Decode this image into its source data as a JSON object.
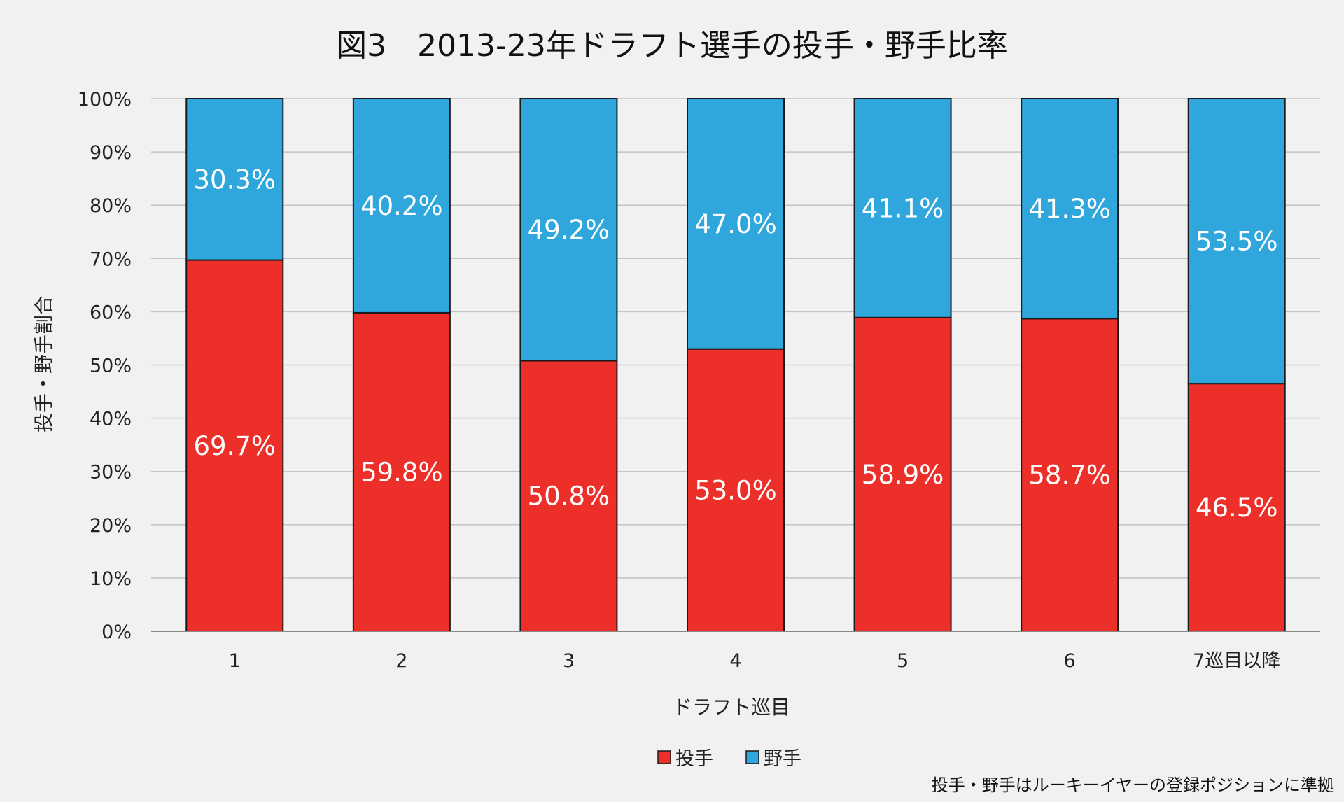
{
  "chart_data": {
    "type": "bar",
    "stacked": true,
    "title": "図3　2013-23年ドラフト選手の投手・野手比率",
    "xlabel": "ドラフト巡目",
    "ylabel": "投手・野手割合",
    "ylim": [
      0,
      100
    ],
    "yticks": [
      "0%",
      "10%",
      "20%",
      "30%",
      "40%",
      "50%",
      "60%",
      "70%",
      "80%",
      "90%",
      "100%"
    ],
    "categories": [
      "1",
      "2",
      "3",
      "4",
      "5",
      "6",
      "7巡目以降"
    ],
    "series": [
      {
        "name": "投手",
        "color": "#ec3029",
        "values": [
          69.7,
          59.8,
          50.8,
          53.0,
          58.9,
          58.7,
          46.5
        ],
        "labels": [
          "69.7%",
          "59.8%",
          "50.8%",
          "53.0%",
          "58.9%",
          "58.7%",
          "46.5%"
        ]
      },
      {
        "name": "野手",
        "color": "#2fa7dc",
        "values": [
          30.3,
          40.2,
          49.2,
          47.0,
          41.1,
          41.3,
          53.5
        ],
        "labels": [
          "30.3%",
          "40.2%",
          "49.2%",
          "47.0%",
          "41.1%",
          "41.3%",
          "53.5%"
        ]
      }
    ],
    "grid": true,
    "legend_position": "bottom",
    "note": "投手・野手はルーキーイヤーの登録ポジションに準拠"
  }
}
